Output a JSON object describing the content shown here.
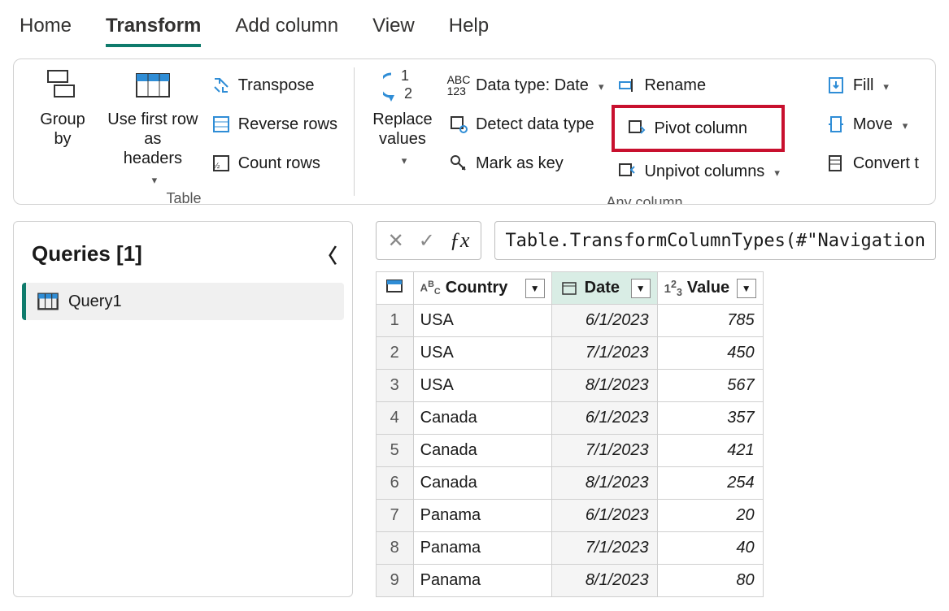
{
  "tabs": {
    "home": "Home",
    "transform": "Transform",
    "addcol": "Add column",
    "view": "View",
    "help": "Help",
    "active": "transform"
  },
  "ribbon": {
    "group_table_label": "Table",
    "group_anycol_label": "Any column",
    "group_by": "Group\nby",
    "use_first_row": "Use first row as\nheaders",
    "transpose": "Transpose",
    "reverse_rows": "Reverse rows",
    "count_rows": "Count rows",
    "replace_values": "Replace\nvalues",
    "data_type": "Data type: Date",
    "detect": "Detect data type",
    "mark_as_key": "Mark as key",
    "rename": "Rename",
    "pivot": "Pivot column",
    "unpivot": "Unpivot columns",
    "fill": "Fill",
    "move": "Move",
    "convert": "Convert t"
  },
  "queries": {
    "header": "Queries [1]",
    "items": [
      "Query1"
    ]
  },
  "formula": "Table.TransformColumnTypes(#\"Navigation ",
  "table": {
    "columns": [
      {
        "name": "Country",
        "type": "text"
      },
      {
        "name": "Date",
        "type": "date",
        "selected": true
      },
      {
        "name": "Value",
        "type": "number"
      }
    ],
    "rows": [
      [
        "USA",
        "6/1/2023",
        "785"
      ],
      [
        "USA",
        "7/1/2023",
        "450"
      ],
      [
        "USA",
        "8/1/2023",
        "567"
      ],
      [
        "Canada",
        "6/1/2023",
        "357"
      ],
      [
        "Canada",
        "7/1/2023",
        "421"
      ],
      [
        "Canada",
        "8/1/2023",
        "254"
      ],
      [
        "Panama",
        "6/1/2023",
        "20"
      ],
      [
        "Panama",
        "7/1/2023",
        "40"
      ],
      [
        "Panama",
        "8/1/2023",
        "80"
      ]
    ]
  },
  "colors": {
    "accent": "#0f7b6c",
    "highlight": "#c8102e"
  }
}
